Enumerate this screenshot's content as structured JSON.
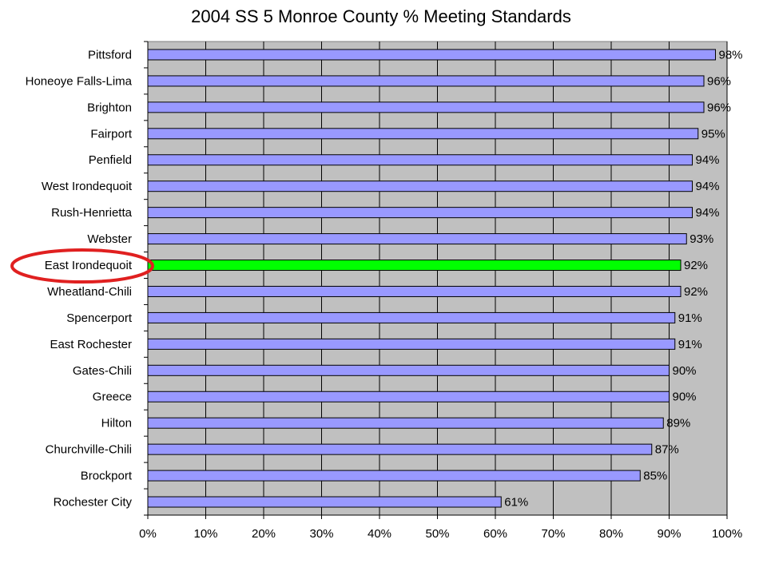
{
  "chart_data": {
    "type": "bar",
    "orientation": "horizontal",
    "title": "2004 SS 5 Monroe County % Meeting Standards",
    "categories": [
      "Pittsford",
      "Honeoye Falls-Lima",
      "Brighton",
      "Fairport",
      "Penfield",
      "West Irondequoit",
      "Rush-Henrietta",
      "Webster",
      "East Irondequoit",
      "Wheatland-Chili",
      "Spencerport",
      "East Rochester",
      "Gates-Chili",
      "Greece",
      "Hilton",
      "Churchville-Chili",
      "Brockport",
      "Rochester City"
    ],
    "values": [
      98,
      96,
      96,
      95,
      94,
      94,
      94,
      93,
      92,
      92,
      91,
      91,
      90,
      90,
      89,
      87,
      85,
      61
    ],
    "value_labels": [
      "98%",
      "96%",
      "96%",
      "95%",
      "94%",
      "94%",
      "94%",
      "93%",
      "92%",
      "92%",
      "91%",
      "91%",
      "90%",
      "90%",
      "89%",
      "87%",
      "85%",
      "61%"
    ],
    "colors": [
      "#9999ff",
      "#9999ff",
      "#9999ff",
      "#9999ff",
      "#9999ff",
      "#9999ff",
      "#9999ff",
      "#9999ff",
      "#00ff00",
      "#9999ff",
      "#9999ff",
      "#9999ff",
      "#9999ff",
      "#9999ff",
      "#9999ff",
      "#9999ff",
      "#9999ff",
      "#9999ff"
    ],
    "xlim": [
      0,
      100
    ],
    "xticks": [
      {
        "value": 0,
        "label": "0%"
      },
      {
        "value": 10,
        "label": "10%"
      },
      {
        "value": 20,
        "label": "20%"
      },
      {
        "value": 30,
        "label": "30%"
      },
      {
        "value": 40,
        "label": "40%"
      },
      {
        "value": 50,
        "label": "50%"
      },
      {
        "value": 60,
        "label": "60%"
      },
      {
        "value": 70,
        "label": "70%"
      },
      {
        "value": 80,
        "label": "80%"
      },
      {
        "value": 90,
        "label": "90%"
      },
      {
        "value": 100,
        "label": "100%"
      }
    ],
    "grid": true
  }
}
